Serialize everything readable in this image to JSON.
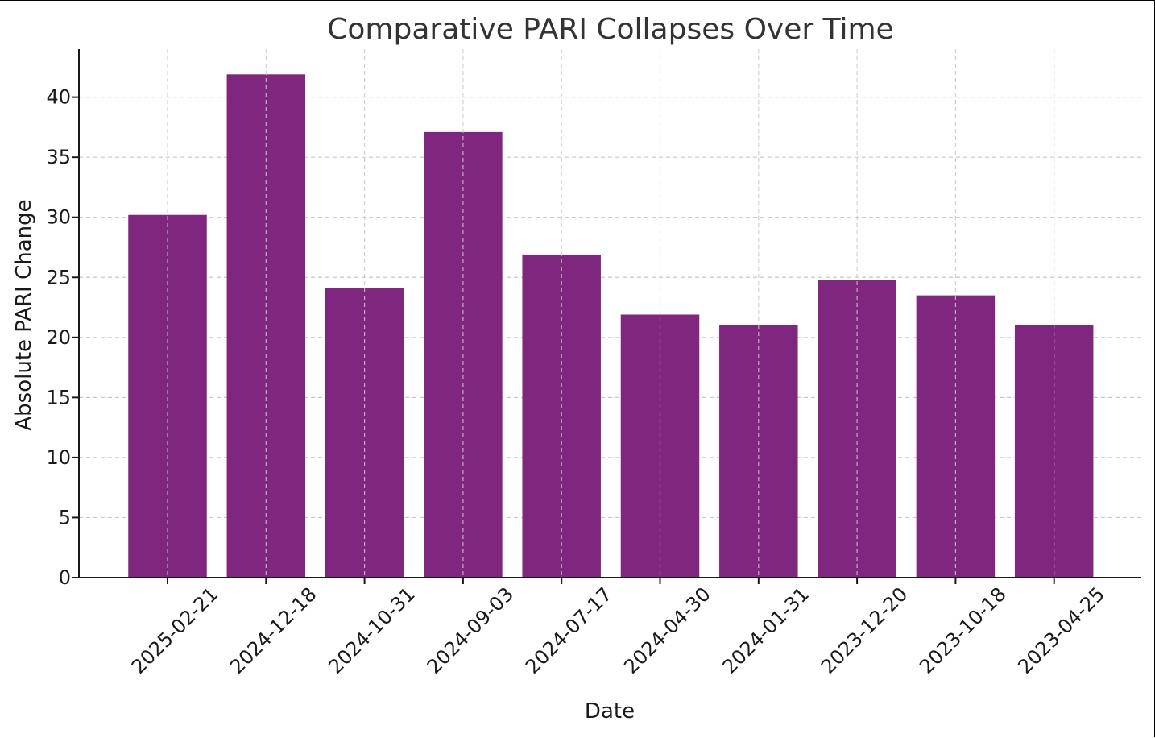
{
  "chart_data": {
    "type": "bar",
    "title": "Comparative PARI Collapses Over Time",
    "xlabel": "Date",
    "ylabel": "Absolute PARI Change",
    "categories": [
      "2025-02-21",
      "2024-12-18",
      "2024-10-31",
      "2024-09-03",
      "2024-07-17",
      "2024-04-30",
      "2024-01-31",
      "2023-12-20",
      "2023-10-18",
      "2023-04-25"
    ],
    "values": [
      30.2,
      41.9,
      24.1,
      37.1,
      26.9,
      21.9,
      21.0,
      24.8,
      23.5,
      21.0
    ],
    "ylim": [
      0,
      44
    ],
    "yticks": [
      0,
      5,
      10,
      15,
      20,
      25,
      30,
      35,
      40
    ],
    "grid": true,
    "grid_style": "dashed",
    "bar_color": "#7f267f",
    "xtick_rotation_deg": -45
  }
}
